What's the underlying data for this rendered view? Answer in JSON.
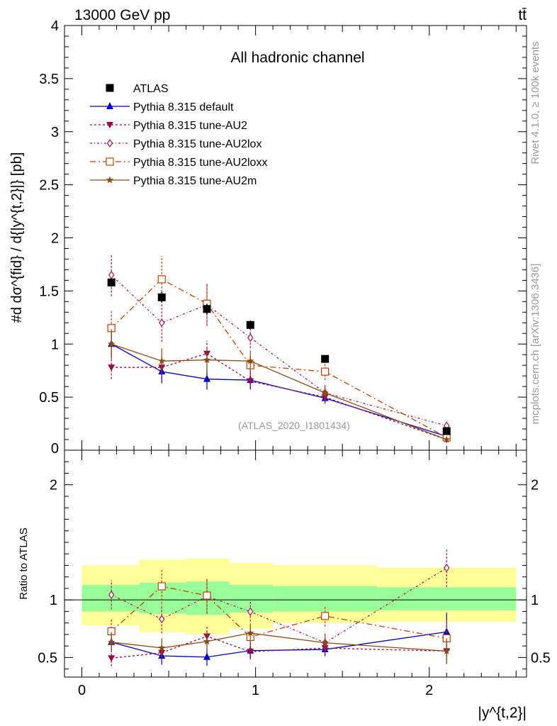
{
  "header": {
    "energy": "13000 GeV pp",
    "process": "tt̄"
  },
  "side": {
    "rivet": "Rivet 4.1.0, ≥ 100k events",
    "mcplots": "mcplots.cern.ch [arXiv:1306.3436]"
  },
  "chart_data": {
    "type": "line",
    "title": "All hadronic channel",
    "analysis_tag": "(ATLAS_2020_I1801434)",
    "ylabel_main": "#d dσ^{fid} / d{|y^{t,2}|} [pb]",
    "ylabel_ratio": "Ratio to ATLAS",
    "xlabel": "|y^{t,2}|",
    "xlim": [
      -0.1,
      2.56
    ],
    "ylim_main": [
      0,
      4
    ],
    "ylim_ratio": [
      0.33,
      2.3
    ],
    "main_yticks": [
      {
        "v": 0.5,
        "label": "0.5"
      },
      {
        "v": 1,
        "label": "1"
      },
      {
        "v": 1.5,
        "label": "1.5"
      },
      {
        "v": 2,
        "label": "2"
      },
      {
        "v": 2.5,
        "label": "2.5"
      },
      {
        "v": 3,
        "label": "3"
      },
      {
        "v": 3.5,
        "label": "3.5"
      },
      {
        "v": 4,
        "label": "4"
      }
    ],
    "main_zero_label": "0",
    "ratio_yticks": [
      {
        "v": 0.5,
        "label": "0.5"
      },
      {
        "v": 1,
        "label": "1"
      },
      {
        "v": 2,
        "label": "2"
      }
    ],
    "xticks": [
      {
        "v": 0,
        "label": "0"
      },
      {
        "v": 1,
        "label": "1"
      },
      {
        "v": 2,
        "label": "2"
      }
    ],
    "bins": [
      [
        0,
        0.33
      ],
      [
        0.33,
        0.6
      ],
      [
        0.6,
        0.85
      ],
      [
        0.85,
        1.1
      ],
      [
        1.1,
        1.7
      ],
      [
        1.7,
        2.5
      ]
    ],
    "x": [
      0.17,
      0.46,
      0.72,
      0.97,
      1.4,
      2.1
    ],
    "band_yellow": [
      [
        0.78,
        1.3
      ],
      [
        0.72,
        1.35
      ],
      [
        0.7,
        1.36
      ],
      [
        0.75,
        1.32
      ],
      [
        0.8,
        1.3
      ],
      [
        0.81,
        1.28
      ]
    ],
    "band_green": [
      [
        0.9,
        1.13
      ],
      [
        0.88,
        1.15
      ],
      [
        0.87,
        1.16
      ],
      [
        0.89,
        1.13
      ],
      [
        0.9,
        1.12
      ],
      [
        0.91,
        1.11
      ]
    ],
    "data": {
      "name": "ATLAS",
      "values": [
        1.58,
        1.44,
        1.33,
        1.18,
        0.86,
        0.18
      ],
      "errors": [
        0.04,
        0.05,
        0.05,
        0.04,
        0.02,
        0.02
      ]
    },
    "series": [
      {
        "name": "Pythia 8.315 default",
        "color": "#0000cc",
        "marker": "triangle-up",
        "dash": "none",
        "values": [
          1.0,
          0.74,
          0.67,
          0.66,
          0.49,
          0.13
        ],
        "errors": [
          0.13,
          0.11,
          0.1,
          0.08,
          0.05,
          0.03
        ]
      },
      {
        "name": "Pythia 8.315 tune-AU2",
        "color": "#a0004a",
        "marker": "triangle-down",
        "dash": "3,3",
        "values": [
          0.78,
          0.78,
          0.91,
          0.65,
          0.5,
          0.1
        ],
        "errors": [
          0.11,
          0.11,
          0.12,
          0.08,
          0.06,
          0.02
        ]
      },
      {
        "name": "Pythia 8.315 tune-AU2lox",
        "color": "#b0104a",
        "marker": "diamond-open",
        "dash": "3,3,1,3",
        "values": [
          1.65,
          1.2,
          1.37,
          1.06,
          0.54,
          0.23
        ],
        "errors": [
          0.2,
          0.18,
          0.2,
          0.1,
          0.08,
          0.03
        ]
      },
      {
        "name": "Pythia 8.315 tune-AU2loxx",
        "color": "#c04000",
        "marker": "square-open",
        "dash": "8,4,2,4",
        "values": [
          1.15,
          1.61,
          1.38,
          0.8,
          0.74,
          0.12
        ],
        "errors": [
          0.16,
          0.22,
          0.2,
          0.1,
          0.08,
          0.03
        ]
      },
      {
        "name": "Pythia 8.315 tune-AU2m",
        "color": "#8b4a10",
        "marker": "star",
        "dash": "none",
        "values": [
          1.0,
          0.84,
          0.85,
          0.84,
          0.54,
          0.1
        ],
        "errors": [
          0.14,
          0.12,
          0.12,
          0.1,
          0.06,
          0.02
        ]
      }
    ],
    "legend_placement": "top-left"
  }
}
